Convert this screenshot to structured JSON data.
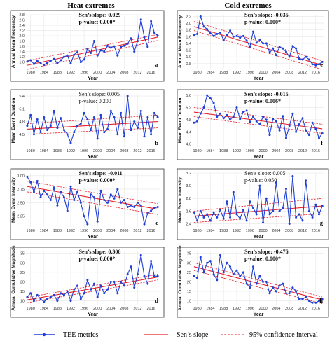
{
  "column_titles": [
    "Heat extremes",
    "Cold extremes"
  ],
  "legend": {
    "metrics": "TEE metrics",
    "slope": "Sen’s slope",
    "ci": "95% confidence interval"
  },
  "colors": {
    "series": "#1f3fd6",
    "trend": "#e8202a",
    "ci": "#e8202a",
    "grid": "#e6e6e6",
    "axis": "#333333"
  },
  "chart_data": [
    {
      "type": "line",
      "panel_letter": "a",
      "ylabel": "Annual Mean Frequency",
      "xlabel": "Year",
      "ylim": [
        0.75,
        2.8
      ],
      "yticks": [
        "1.0",
        "1.2",
        "1.4",
        "1.6",
        "1.8",
        "2.0",
        "2.2",
        "2.4",
        "2.6",
        "2.8"
      ],
      "xticks": [
        "1980",
        "1984",
        "1988",
        "1992",
        "1996",
        "2000",
        "2004",
        "2008",
        "2012",
        "2016"
      ],
      "slope_line": "Sen’s slope: 0.029",
      "p_line": "p-value: 0.000*",
      "bold_stats": true,
      "x": [
        1979,
        1980,
        1981,
        1982,
        1983,
        1984,
        1985,
        1986,
        1987,
        1988,
        1989,
        1990,
        1991,
        1992,
        1993,
        1994,
        1995,
        1996,
        1997,
        1998,
        1999,
        2000,
        2001,
        2002,
        2003,
        2004,
        2005,
        2006,
        2007,
        2008,
        2009,
        2010,
        2011,
        2012,
        2013,
        2014,
        2015,
        2016,
        2017,
        2018
      ],
      "y": [
        1.02,
        1.07,
        0.93,
        1.05,
        0.95,
        0.9,
        0.97,
        1.05,
        1.12,
        0.95,
        1.07,
        1.2,
        1.25,
        0.95,
        1.28,
        1.38,
        1.0,
        1.1,
        1.5,
        1.35,
        1.8,
        1.25,
        1.45,
        1.4,
        1.62,
        1.55,
        1.6,
        1.25,
        1.58,
        1.62,
        1.7,
        1.9,
        1.4,
        1.8,
        2.62,
        1.95,
        1.58,
        2.55,
        2.12,
        2.0
      ],
      "trend": [
        0.88,
        1.95
      ],
      "ci_upper": [
        1.05,
        2.05
      ],
      "ci_lower": [
        0.72,
        1.82
      ]
    },
    {
      "type": "line",
      "panel_letter": "e",
      "ylabel": "Annual Mean Frequency",
      "xlabel": "Year",
      "ylim": [
        0.65,
        2.25
      ],
      "yticks": [
        "0.8",
        "1.0",
        "1.2",
        "1.4",
        "1.6",
        "1.8",
        "2.0",
        "2.2"
      ],
      "xticks": [
        "1980",
        "1984",
        "1988",
        "1992",
        "1996",
        "2000",
        "2004",
        "2008",
        "2012",
        "2016"
      ],
      "slope_line": "Sen’s slope: -0.036",
      "p_line": "p-value: 0.000*",
      "bold_stats": true,
      "x": [
        1979,
        1980,
        1981,
        1982,
        1983,
        1984,
        1985,
        1986,
        1987,
        1988,
        1989,
        1990,
        1991,
        1992,
        1993,
        1994,
        1995,
        1996,
        1997,
        1998,
        1999,
        2000,
        2001,
        2002,
        2003,
        2004,
        2005,
        2006,
        2007,
        2008,
        2009,
        2010,
        2011,
        2012,
        2013,
        2014,
        2015,
        2016,
        2017,
        2018
      ],
      "y": [
        1.65,
        1.68,
        2.2,
        1.9,
        1.82,
        1.7,
        1.62,
        1.68,
        1.72,
        1.5,
        1.65,
        1.78,
        1.6,
        1.62,
        1.57,
        1.62,
        1.48,
        1.3,
        1.75,
        1.42,
        1.5,
        1.4,
        1.4,
        1.12,
        1.25,
        1.05,
        1.3,
        1.25,
        1.15,
        1.0,
        1.32,
        1.25,
        0.95,
        0.92,
        1.0,
        0.92,
        0.78,
        0.75,
        0.78,
        0.85
      ],
      "trend": [
        1.9,
        0.75
      ],
      "ci_upper": [
        2.05,
        0.88
      ],
      "ci_lower": [
        1.78,
        0.62
      ]
    },
    {
      "type": "line",
      "panel_letter": "b",
      "ylabel": "Mean Event Duration",
      "xlabel": "Year",
      "ylim": [
        4.2,
        5.45
      ],
      "yticks": [
        "4.5",
        "4.8",
        "5.1",
        "5.4"
      ],
      "xticks": [
        "1980",
        "1984",
        "1988",
        "1992",
        "1996",
        "2000",
        "2004",
        "2008",
        "2012",
        "2016"
      ],
      "slope_line": "Sen’s slope: 0.005",
      "p_line": "p-value: 0.200",
      "bold_stats": false,
      "x": [
        1979,
        1980,
        1981,
        1982,
        1983,
        1984,
        1985,
        1986,
        1987,
        1988,
        1989,
        1990,
        1991,
        1992,
        1993,
        1994,
        1995,
        1996,
        1997,
        1998,
        1999,
        2000,
        2001,
        2002,
        2003,
        2004,
        2005,
        2006,
        2007,
        2008,
        2009,
        2010,
        2011,
        2012,
        2013,
        2014,
        2015,
        2016,
        2017,
        2018
      ],
      "y": [
        4.7,
        4.95,
        4.5,
        4.85,
        4.55,
        4.9,
        4.6,
        4.7,
        5.05,
        4.65,
        4.88,
        4.6,
        4.5,
        4.3,
        4.55,
        4.7,
        4.75,
        5.0,
        4.85,
        4.6,
        4.9,
        4.4,
        4.95,
        4.55,
        4.62,
        5.05,
        4.9,
        4.5,
        5.0,
        4.45,
        5.4,
        4.6,
        4.8,
        4.65,
        5.05,
        4.45,
        4.9,
        4.5,
        5.0,
        4.9
      ],
      "trend": [
        4.62,
        4.8
      ],
      "ci_upper": [
        4.75,
        4.95
      ],
      "ci_lower": [
        4.5,
        4.65
      ]
    },
    {
      "type": "line",
      "panel_letter": "f",
      "ylabel": "Mean Event Duration",
      "xlabel": "Year",
      "ylim": [
        3.9,
        5.65
      ],
      "yticks": [
        "4.0",
        "4.4",
        "4.8",
        "5.2",
        "5.6"
      ],
      "xticks": [
        "1980",
        "1984",
        "1988",
        "1992",
        "1996",
        "2000",
        "2004",
        "2008",
        "2012",
        "2016"
      ],
      "slope_line": "Sen’s slope: -0.015",
      "p_line": "p-value: 0.006*",
      "bold_stats": true,
      "x": [
        1979,
        1980,
        1981,
        1982,
        1983,
        1984,
        1985,
        1986,
        1987,
        1988,
        1989,
        1990,
        1991,
        1992,
        1993,
        1994,
        1995,
        1996,
        1997,
        1998,
        1999,
        2000,
        2001,
        2002,
        2003,
        2004,
        2005,
        2006,
        2007,
        2008,
        2009,
        2010,
        2011,
        2012,
        2013,
        2014,
        2015,
        2016,
        2017,
        2018
      ],
      "y": [
        4.7,
        4.75,
        5.0,
        5.2,
        5.6,
        5.5,
        5.35,
        4.9,
        5.0,
        4.85,
        4.95,
        4.8,
        4.9,
        5.2,
        4.82,
        5.05,
        5.1,
        4.72,
        4.9,
        4.75,
        4.65,
        4.9,
        4.8,
        4.3,
        4.82,
        4.75,
        4.45,
        4.92,
        4.2,
        4.6,
        5.0,
        4.4,
        4.65,
        4.85,
        4.45,
        4.3,
        4.7,
        4.5,
        4.2,
        4.35
      ],
      "trend": [
        5.05,
        4.5
      ],
      "ci_upper": [
        5.2,
        4.65
      ],
      "ci_lower": [
        4.9,
        4.35
      ]
    },
    {
      "type": "line",
      "panel_letter": "c",
      "ylabel": "Mean Event Intensity",
      "xlabel": "Year",
      "ylim": [
        2.05,
        3.05
      ],
      "yticks": [
        "2.25",
        "2.50",
        "2.75",
        "3.00"
      ],
      "xticks": [
        "1980",
        "1984",
        "1988",
        "1992",
        "1996",
        "2000",
        "2004",
        "2008",
        "2012",
        "2016"
      ],
      "slope_line": "Sen’s slope: -0.011",
      "p_line": "p-value: 0.000*",
      "bold_stats": true,
      "x": [
        1979,
        1980,
        1981,
        1982,
        1983,
        1984,
        1985,
        1986,
        1987,
        1988,
        1989,
        1990,
        1991,
        1992,
        1993,
        1994,
        1995,
        1996,
        1997,
        1998,
        1999,
        2000,
        2001,
        2002,
        2003,
        2004,
        2005,
        2006,
        2007,
        2008,
        2009,
        2010,
        2011,
        2012,
        2013,
        2014,
        2015,
        2016,
        2017,
        2018
      ],
      "y": [
        2.98,
        2.88,
        2.7,
        2.9,
        2.6,
        2.72,
        2.65,
        2.55,
        2.78,
        2.45,
        2.7,
        2.6,
        2.35,
        2.8,
        2.55,
        2.7,
        2.5,
        2.25,
        2.1,
        2.65,
        2.6,
        2.15,
        2.72,
        2.55,
        2.5,
        2.65,
        2.58,
        2.75,
        2.5,
        2.55,
        2.42,
        2.45,
        2.42,
        2.5,
        2.45,
        2.1,
        2.3,
        2.35,
        2.4,
        2.42
      ],
      "trend": [
        2.8,
        2.38
      ],
      "ci_upper": [
        2.9,
        2.48
      ],
      "ci_lower": [
        2.7,
        2.28
      ]
    },
    {
      "type": "line",
      "panel_letter": "g",
      "ylabel": "Mean Event Intensity",
      "xlabel": "Year",
      "ylim": [
        2.35,
        3.2
      ],
      "yticks": [
        "2.4",
        "2.6",
        "2.8",
        "3.0",
        "3.2"
      ],
      "xticks": [
        "1980",
        "1984",
        "1988",
        "1992",
        "1996",
        "2000",
        "2004",
        "2008",
        "2012",
        "2016"
      ],
      "slope_line": "Sen’s slope: 0.005",
      "p_line": "p-value: 0.050",
      "bold_stats": false,
      "x": [
        1979,
        1980,
        1981,
        1982,
        1983,
        1984,
        1985,
        1986,
        1987,
        1988,
        1989,
        1990,
        1991,
        1992,
        1993,
        1994,
        1995,
        1996,
        1997,
        1998,
        1999,
        2000,
        2001,
        2002,
        2003,
        2004,
        2005,
        2006,
        2007,
        2008,
        2009,
        2010,
        2011,
        2012,
        2013,
        2014,
        2015,
        2016,
        2017,
        2018
      ],
      "y": [
        2.58,
        2.45,
        2.6,
        2.5,
        2.55,
        2.45,
        2.58,
        2.5,
        2.62,
        2.48,
        2.75,
        2.5,
        2.9,
        2.55,
        2.48,
        2.62,
        2.45,
        2.75,
        2.65,
        2.55,
        3.0,
        2.42,
        2.8,
        2.55,
        2.6,
        3.05,
        2.6,
        2.65,
        2.95,
        2.4,
        3.15,
        2.5,
        2.55,
        2.45,
        3.08,
        2.6,
        2.5,
        2.7,
        2.55,
        2.68
      ],
      "trend": [
        2.52,
        2.68
      ],
      "ci_upper": [
        2.6,
        2.8
      ],
      "ci_lower": [
        2.42,
        2.56
      ]
    },
    {
      "type": "line",
      "panel_letter": "d",
      "ylabel": "Annual Cumulative Magnitude",
      "xlabel": "Year",
      "ylim": [
        8,
        36
      ],
      "yticks": [
        "10",
        "15",
        "20",
        "25",
        "30",
        "35"
      ],
      "xticks": [
        "1980",
        "1984",
        "1988",
        "1992",
        "1996",
        "2000",
        "2004",
        "2008",
        "2012",
        "2016"
      ],
      "slope_line": "Sen’s slope: 0.306",
      "p_line": "p-value: 0.000*",
      "bold_stats": true,
      "x": [
        1979,
        1980,
        1981,
        1982,
        1983,
        1984,
        1985,
        1986,
        1987,
        1988,
        1989,
        1990,
        1991,
        1992,
        1993,
        1994,
        1995,
        1996,
        1997,
        1998,
        1999,
        2000,
        2001,
        2002,
        2003,
        2004,
        2005,
        2006,
        2007,
        2008,
        2009,
        2010,
        2011,
        2012,
        2013,
        2014,
        2015,
        2016,
        2017,
        2018
      ],
      "y": [
        12,
        14,
        10,
        13,
        11,
        9.5,
        11,
        12,
        13,
        10,
        14,
        13,
        15,
        10,
        16,
        18,
        11,
        14,
        21,
        16,
        19,
        12,
        18,
        14,
        16,
        20,
        20,
        14,
        20,
        18,
        24,
        28,
        17,
        24,
        34,
        23,
        19,
        31,
        23,
        23
      ],
      "trend": [
        10.5,
        22.5
      ],
      "ci_upper": [
        11.8,
        24
      ],
      "ci_lower": [
        9,
        21
      ]
    },
    {
      "type": "line",
      "panel_letter": "h",
      "ylabel": "Annual Cumulative Magnitude",
      "xlabel": "Year",
      "ylim": [
        8,
        36
      ],
      "yticks": [
        "10",
        "15",
        "20",
        "25",
        "30",
        "35"
      ],
      "xticks": [
        "1980",
        "1984",
        "1988",
        "1992",
        "1996",
        "2000",
        "2004",
        "2008",
        "2012",
        "2016"
      ],
      "slope_line": "Sen’s slope: -0.476",
      "p_line": "p-value: 0.000*",
      "bold_stats": true,
      "x": [
        1979,
        1980,
        1981,
        1982,
        1983,
        1984,
        1985,
        1986,
        1987,
        1988,
        1989,
        1990,
        1991,
        1992,
        1993,
        1994,
        1995,
        1996,
        1997,
        1998,
        1999,
        2000,
        2001,
        2002,
        2003,
        2004,
        2005,
        2006,
        2007,
        2008,
        2009,
        2010,
        2011,
        2012,
        2013,
        2014,
        2015,
        2016,
        2017,
        2018
      ],
      "y": [
        23,
        22,
        33,
        25,
        30,
        31,
        24,
        21,
        34,
        25,
        30,
        28,
        24,
        26,
        23,
        25,
        19,
        17,
        28,
        19,
        23,
        20,
        20,
        14,
        17,
        15,
        18,
        19,
        14,
        14,
        17,
        15,
        11,
        11,
        12,
        10,
        9,
        9,
        10,
        11
      ],
      "trend": [
        28,
        10.5
      ],
      "ci_upper": [
        30,
        12
      ],
      "ci_lower": [
        26,
        8.5
      ]
    }
  ]
}
